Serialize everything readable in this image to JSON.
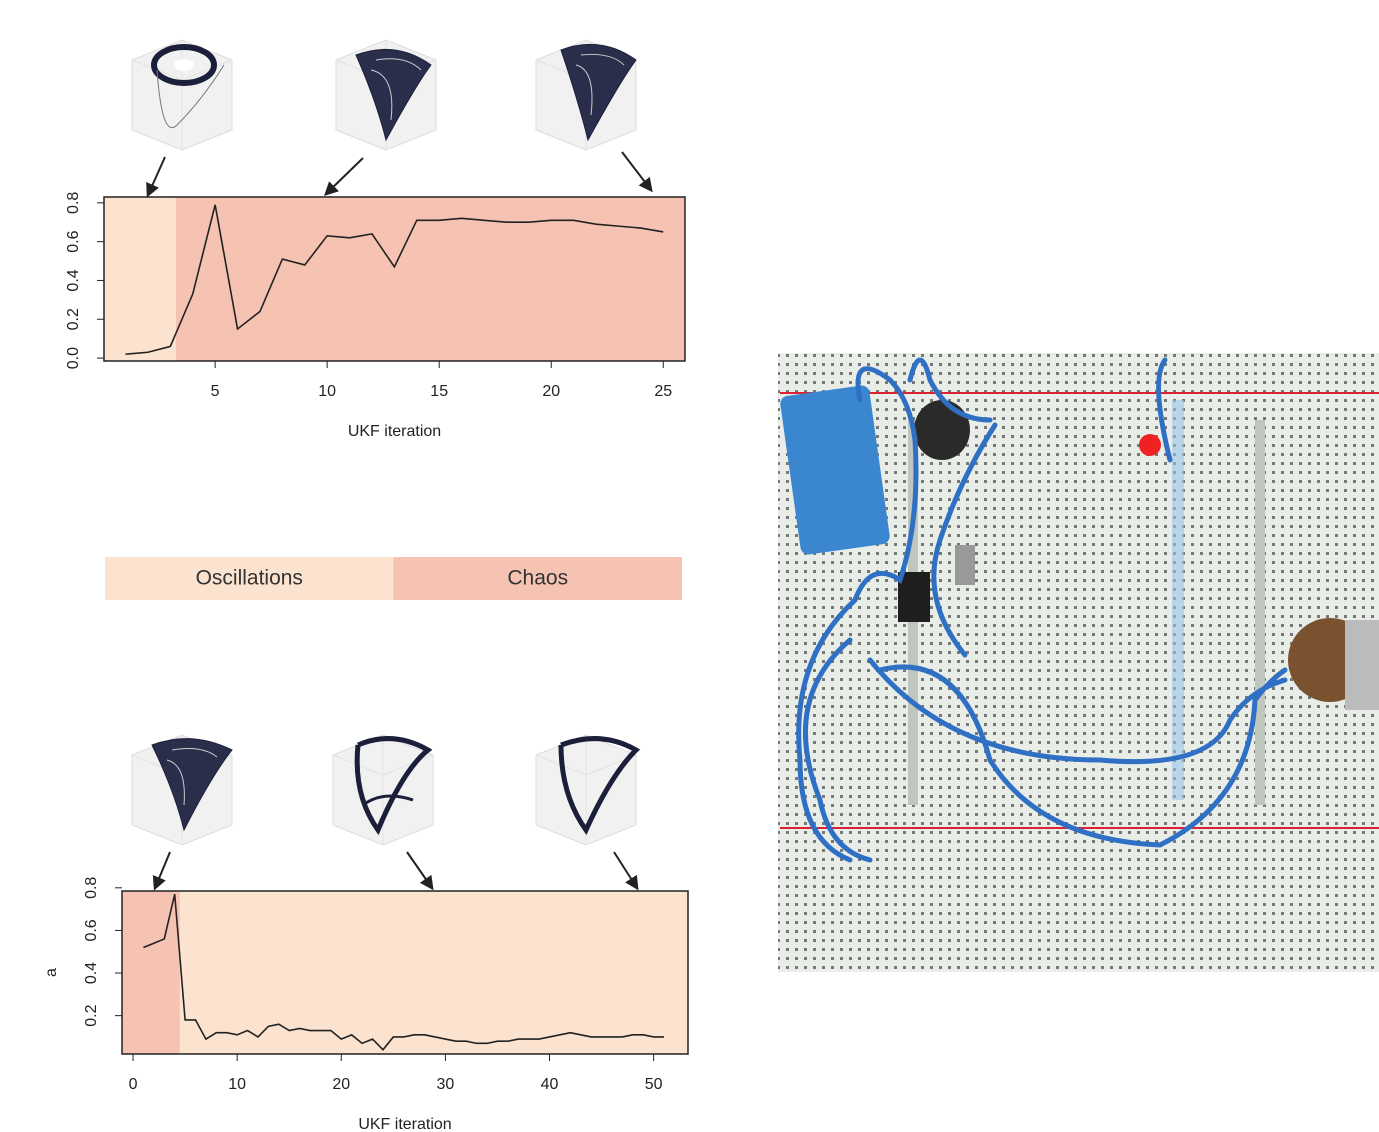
{
  "chart_data": [
    {
      "type": "line",
      "xlabel": "UKF iteration",
      "x": [
        1,
        2,
        3,
        4,
        5,
        6,
        7,
        8,
        9,
        10,
        11,
        12,
        13,
        14,
        15,
        16,
        17,
        18,
        19,
        20,
        21,
        22,
        23,
        24,
        25
      ],
      "values": [
        0.02,
        0.03,
        0.06,
        0.33,
        0.79,
        0.15,
        0.24,
        0.51,
        0.48,
        0.63,
        0.62,
        0.64,
        0.47,
        0.71,
        0.71,
        0.72,
        0.71,
        0.7,
        0.7,
        0.71,
        0.71,
        0.69,
        0.68,
        0.67,
        0.65
      ],
      "color": "#222222",
      "xlim": [
        0.04,
        25.97
      ],
      "ylim": [
        -0.015,
        0.83
      ],
      "xticks": [
        5,
        10,
        15,
        20,
        25
      ],
      "yticks": [
        {
          "value": 0,
          "label": "0.0"
        },
        0.2,
        0.4,
        0.6,
        0.8
      ],
      "regions": [
        {
          "span": [
            0.04,
            3.25
          ],
          "color": "#fbe3cf"
        },
        {
          "span": [
            3.25,
            25.97
          ],
          "color": "#f6c3b3"
        }
      ]
    },
    {
      "type": "line",
      "xlabel": "UKF iteration",
      "ylabel": "a",
      "x": [
        1,
        2,
        3,
        4,
        5,
        6,
        7,
        8,
        9,
        10,
        11,
        12,
        13,
        14,
        15,
        16,
        17,
        18,
        19,
        20,
        21,
        22,
        23,
        24,
        25,
        26,
        27,
        28,
        29,
        30,
        31,
        32,
        33,
        34,
        35,
        36,
        37,
        38,
        39,
        40,
        41,
        42,
        43,
        44,
        45,
        46,
        47,
        48,
        49,
        50,
        51
      ],
      "values": [
        0.52,
        0.54,
        0.56,
        0.77,
        0.18,
        0.18,
        0.09,
        0.12,
        0.12,
        0.11,
        0.13,
        0.1,
        0.15,
        0.16,
        0.13,
        0.14,
        0.13,
        0.13,
        0.13,
        0.09,
        0.11,
        0.07,
        0.09,
        0.04,
        0.1,
        0.1,
        0.11,
        0.11,
        0.1,
        0.09,
        0.08,
        0.08,
        0.07,
        0.07,
        0.08,
        0.08,
        0.09,
        0.09,
        0.09,
        0.1,
        0.11,
        0.12,
        0.11,
        0.1,
        0.1,
        0.1,
        0.1,
        0.11,
        0.11,
        0.1,
        0.1
      ],
      "color": "#222222",
      "xlim": [
        -1.06,
        53.3
      ],
      "ylim": [
        0.02,
        0.785
      ],
      "xticks": [
        0,
        10,
        20,
        30,
        40,
        50
      ],
      "yticks": [
        0.2,
        0.4,
        0.6,
        0.8
      ],
      "regions": [
        {
          "span": [
            -1.06,
            4.5
          ],
          "color": "#f6c3b3"
        },
        {
          "span": [
            4.5,
            53.3
          ],
          "color": "#fbe3cf"
        }
      ]
    }
  ],
  "legend": [
    {
      "name": "Oscillations",
      "color": "#fbe3cf"
    },
    {
      "name": "Chaos",
      "color": "#f6c3b3"
    }
  ]
}
